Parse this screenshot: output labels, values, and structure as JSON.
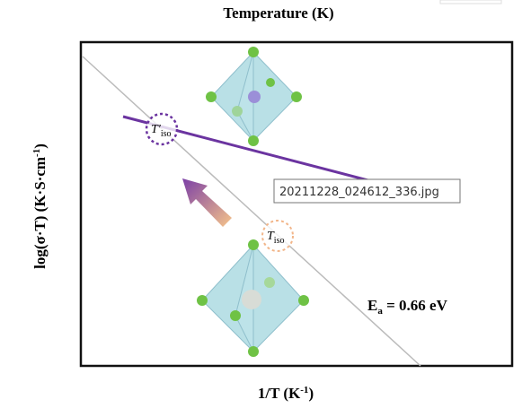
{
  "header": {
    "title": "Temperature (K)"
  },
  "axes": {
    "y_label": {
      "main": "log(σ·T) (K·S·cm",
      "sup": "-1",
      "end": ")"
    },
    "x_label": {
      "main": "1/T (K",
      "sup": "-1",
      "end": ")"
    }
  },
  "annotations": {
    "activation": {
      "main": "E",
      "sub": "a",
      "end": " = 0.66 eV"
    },
    "t_iso_prime": {
      "main": "T′",
      "sub": "iso"
    },
    "t_iso": {
      "main": "T",
      "sub": "iso"
    }
  },
  "tooltip": {
    "text": "20211228_024612_336.jpg"
  }
}
